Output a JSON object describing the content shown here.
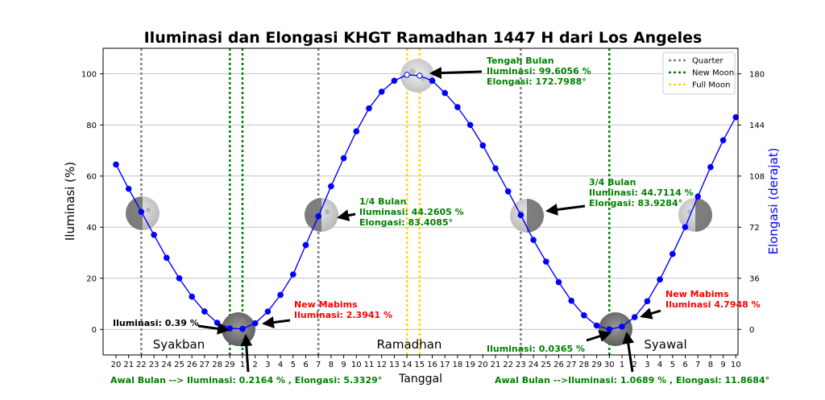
{
  "chart_data": {
    "type": "line",
    "title": "Iluminasi dan Elongasi KHGT Ramadhan 1447 H dari Los Angeles",
    "xlabel": "Tanggal",
    "ylabel": "Iluminasi (%)",
    "y2label": "Elongasi (derajat)",
    "ylim": [
      -10,
      110
    ],
    "y2lim": [
      -18,
      198
    ],
    "yticks": [
      0,
      20,
      40,
      60,
      80,
      100
    ],
    "y2ticks": [
      0,
      36,
      72,
      108,
      144,
      180
    ],
    "grid": true,
    "legend_position": "top-right",
    "x_tick_labels": [
      "20",
      "21",
      "22",
      "23",
      "24",
      "25",
      "26",
      "27",
      "28",
      "29",
      "1",
      "2",
      "3",
      "4",
      "5",
      "6",
      "7",
      "8",
      "9",
      "10",
      "11",
      "12",
      "13",
      "14",
      "15",
      "16",
      "17",
      "18",
      "19",
      "20",
      "21",
      "22",
      "23",
      "24",
      "25",
      "26",
      "27",
      "28",
      "29",
      "30",
      "1",
      "2",
      "3",
      "4",
      "5",
      "6",
      "7",
      "8",
      "9",
      "10"
    ],
    "series": [
      {
        "values": [
          64.5,
          55.0,
          46.0,
          37.0,
          28.0,
          20.0,
          12.8,
          7.0,
          2.6,
          0.39,
          0.2164,
          2.3941,
          7.0,
          13.5,
          21.5,
          33.0,
          44.2605,
          56.0,
          67.0,
          77.5,
          86.5,
          93.0,
          97.3,
          99.6056,
          99.3,
          97.3,
          92.5,
          87.0,
          80.0,
          72.0,
          63.0,
          54.0,
          44.7114,
          35.0,
          26.5,
          18.5,
          11.2,
          5.5,
          1.5,
          0.0365,
          1.0689,
          4.7948,
          11.0,
          19.5,
          29.5,
          40.0,
          52.0,
          63.5,
          74.0,
          83.0
        ]
      }
    ],
    "markers": [
      {
        "label": "Quarter",
        "positions": [
          "22",
          "7",
          "23"
        ],
        "color": "#808080"
      },
      {
        "label": "New Moon",
        "positions": [
          "29",
          "1",
          "30"
        ],
        "color": "#008000"
      },
      {
        "label": "Full Moon",
        "positions": [
          "14",
          "15"
        ],
        "color": "#ffd700"
      }
    ],
    "month_labels": [
      "Syakban",
      "Ramadhan",
      "Syawal"
    ],
    "annotations": [
      {
        "id": "tengah",
        "lines": [
          "Tengah Bulan",
          "Iluminasi: 99.6056 %",
          "Elongasi: 172.7988°"
        ],
        "color": "#008000"
      },
      {
        "id": "q1",
        "lines": [
          "1/4 Bulan",
          "Iluminasi: 44.2605 %",
          "Elongasi: 83.4085°"
        ],
        "color": "#008000"
      },
      {
        "id": "q3",
        "lines": [
          "3/4 Bulan",
          "Iluminasi: 44.7114 %",
          "Elongasi: 83.9284°"
        ],
        "color": "#008000"
      },
      {
        "id": "mabims1",
        "lines": [
          "New Mabims",
          "Iluminasi: 2.3941 %"
        ],
        "color": "#ff0000"
      },
      {
        "id": "mabims2",
        "lines": [
          "New Mabims",
          "Iluminasi 4.7948 %"
        ],
        "color": "#ff0000"
      },
      {
        "id": "ilu1",
        "lines": [
          "Iluminasi: 0.39 %"
        ],
        "color": "#000000"
      },
      {
        "id": "ilu2",
        "lines": [
          "Iluminasi: 0.0365 %"
        ],
        "color": "#008000"
      },
      {
        "id": "awal1",
        "lines": [
          "Awal Bulan --> Iluminasi: 0.2164 % , Elongasi: 5.3329°"
        ],
        "color": "#008000"
      },
      {
        "id": "awal2",
        "lines": [
          "Awal Bulan -->Iluminasi: 1.0689 % , Elongasi: 11.8684°"
        ],
        "color": "#008000"
      }
    ]
  }
}
